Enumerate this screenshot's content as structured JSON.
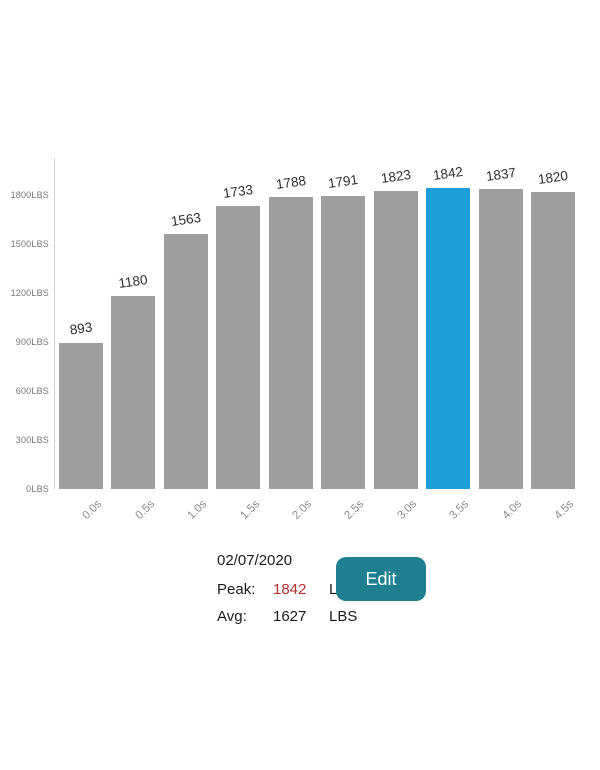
{
  "chart_data": {
    "type": "bar",
    "title": "",
    "xlabel": "",
    "ylabel": "",
    "categories": [
      "0.0s",
      "0.5s",
      "1.0s",
      "1.5s",
      "2.0s",
      "2.5s",
      "3.0s",
      "3.5s",
      "4.0s",
      "4.5s"
    ],
    "values": [
      893,
      1180,
      1563,
      1733,
      1788,
      1791,
      1823,
      1842,
      1837,
      1820
    ],
    "highlight_index": 7,
    "y_ticks": [
      "0LBS",
      "300LBS",
      "600LBS",
      "900LBS",
      "1200LBS",
      "1500LBS",
      "1800LBS"
    ],
    "y_tick_values": [
      0,
      300,
      600,
      900,
      1200,
      1500,
      1800
    ],
    "ylim": [
      0,
      2025
    ],
    "grid": false,
    "legend": "none",
    "bar_color": "#9e9e9e",
    "highlight_color": "#1c9fd9",
    "value_label_color": "#2d2d2d",
    "axis_label_color": "#8c8c8c"
  },
  "info": {
    "date": "02/07/2020",
    "peak_label": "Peak:",
    "peak_value": "1842",
    "peak_unit": "LBS",
    "peak_value_color": "#b13131",
    "avg_label": "Avg:",
    "avg_value": "1627",
    "avg_unit": "LBS"
  },
  "edit_button": {
    "label": "Edit",
    "color": "#1f7f91"
  }
}
